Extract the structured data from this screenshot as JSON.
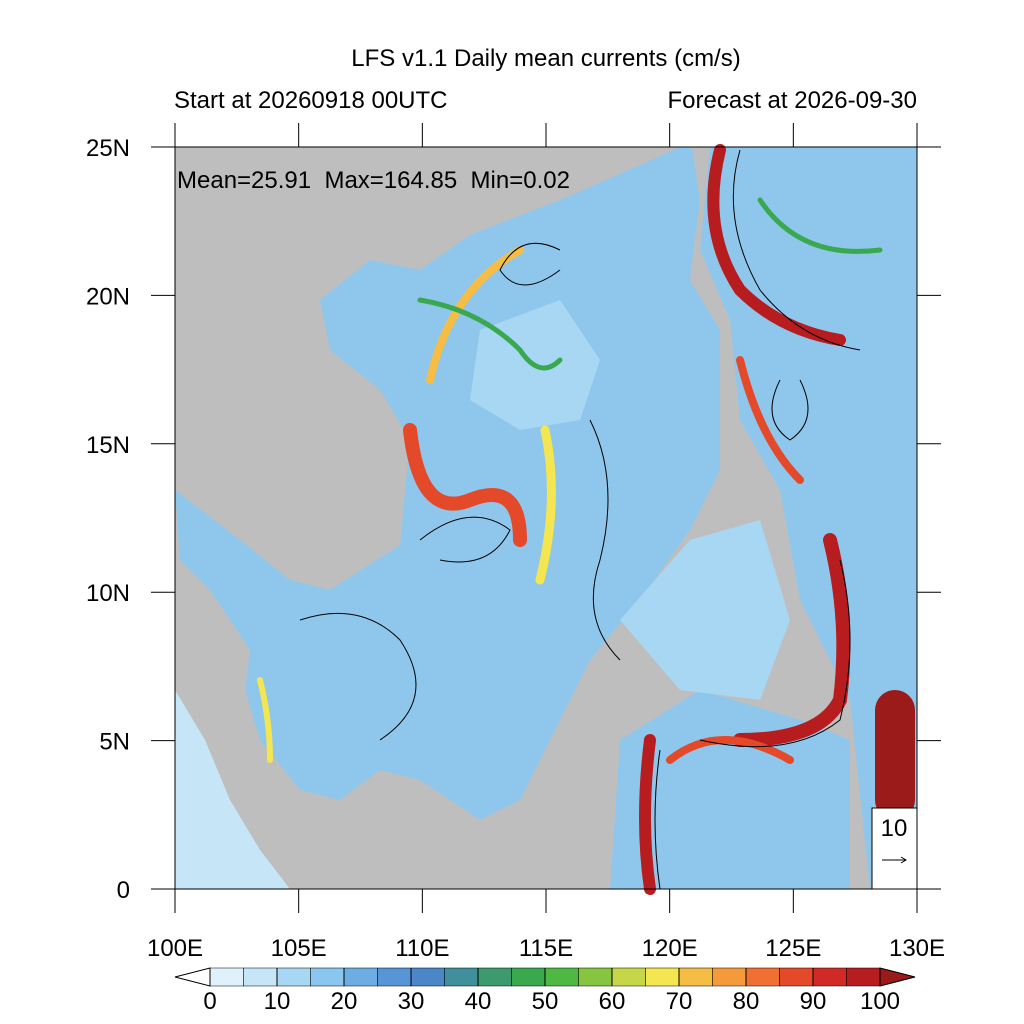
{
  "title": "LFS v1.1 Daily mean currents (cm/s)",
  "subtitle_left": "Start at 20260918 00UTC",
  "subtitle_right": "Forecast at 2026-09-30",
  "stats": "Mean=25.91  Max=164.85  Min=0.02",
  "map": {
    "xlim": [
      100,
      130
    ],
    "ylim": [
      0,
      25
    ],
    "xticks": [
      {
        "value": 100,
        "label": "100E"
      },
      {
        "value": 105,
        "label": "105E"
      },
      {
        "value": 110,
        "label": "110E"
      },
      {
        "value": 115,
        "label": "115E"
      },
      {
        "value": 120,
        "label": "120E"
      },
      {
        "value": 125,
        "label": "125E"
      },
      {
        "value": 130,
        "label": "130E"
      }
    ],
    "yticks": [
      0,
      {
        "value": 5,
        "label": "5N"
      },
      {
        "value": 10,
        "label": "10N"
      },
      {
        "value": 15,
        "label": "15N"
      },
      {
        "value": 20,
        "label": "20N"
      },
      {
        "value": 25,
        "label": "25N"
      }
    ]
  },
  "colorbar": {
    "lim": [
      0,
      100
    ],
    "ticks": [
      0,
      10,
      20,
      30,
      40,
      50,
      60,
      70,
      80,
      90,
      100
    ],
    "colors": [
      "#ffffff",
      "#dff1fb",
      "#c6e6f8",
      "#a8d7f3",
      "#8ac6ee",
      "#6caee3",
      "#5696d6",
      "#4a86c8",
      "#3f8f9c",
      "#3c9a6e",
      "#3aa84e",
      "#4db842",
      "#86c540",
      "#c5d748",
      "#f4e651",
      "#f6bd45",
      "#f49a3a",
      "#ef7032",
      "#e4492a",
      "#d12a26",
      "#b71c1f",
      "#9b1a1a"
    ]
  },
  "reference_vector": {
    "label": "10"
  }
}
